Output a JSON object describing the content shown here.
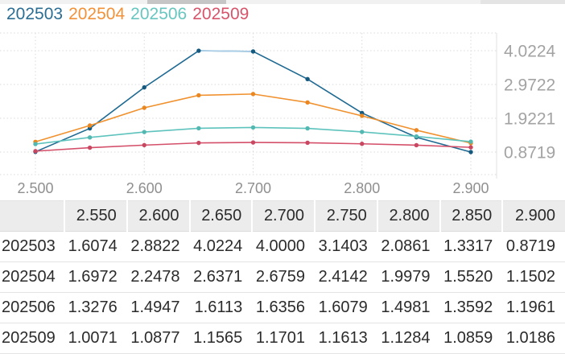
{
  "legend": {
    "items": [
      {
        "label": "202503",
        "color": "#2c6e93"
      },
      {
        "label": "202504",
        "color": "#f29138"
      },
      {
        "label": "202506",
        "color": "#68c6c0"
      },
      {
        "label": "202509",
        "color": "#d7546b"
      }
    ]
  },
  "chart_data": {
    "type": "line",
    "x": [
      2.5,
      2.55,
      2.6,
      2.65,
      2.7,
      2.75,
      2.8,
      2.85,
      2.9
    ],
    "x_tick_labels": [
      "2.500",
      "2.600",
      "2.700",
      "2.800",
      "2.900"
    ],
    "x_tick_values": [
      2.5,
      2.6,
      2.7,
      2.8,
      2.9
    ],
    "y_tick_labels": [
      "4.0224",
      "2.9722",
      "1.9221",
      "0.8719"
    ],
    "y_tick_values": [
      4.0224,
      2.9722,
      1.9221,
      0.8719
    ],
    "y_axis_side": "right",
    "grid": "dotted",
    "legend_position": "top-left",
    "ylim_approx": [
      0.17,
      4.57
    ],
    "first_value_of_each_series_estimated_from_pixels": true,
    "series": [
      {
        "name": "202503",
        "color": "#1e6992",
        "marker_color": "#15597f",
        "values": [
          0.88,
          1.6074,
          2.8822,
          4.0224,
          4.0,
          3.1403,
          2.0861,
          1.3317,
          0.8719
        ]
      },
      {
        "name": "202504",
        "color": "#f0912e",
        "marker_color": "#ea8721",
        "values": [
          1.19,
          1.6972,
          2.2478,
          2.6371,
          2.6759,
          2.4142,
          1.9979,
          1.552,
          1.1502
        ]
      },
      {
        "name": "202506",
        "color": "#5ec3bd",
        "marker_color": "#53b8b2",
        "values": [
          1.12,
          1.3276,
          1.4947,
          1.6113,
          1.6356,
          1.6079,
          1.4981,
          1.3592,
          1.1961
        ]
      },
      {
        "name": "202509",
        "color": "#d4506a",
        "marker_color": "#c94760",
        "values": [
          0.9,
          1.0071,
          1.0877,
          1.1565,
          1.1701,
          1.1613,
          1.1284,
          1.0859,
          1.0186
        ]
      }
    ],
    "highlight_segment": {
      "series": "202503",
      "from_x": 2.65,
      "to_x": 2.7,
      "color": "#a9cde6"
    }
  },
  "table": {
    "corner_label": "",
    "columns": [
      "2.550",
      "2.600",
      "2.650",
      "2.700",
      "2.750",
      "2.800",
      "2.850",
      "2.900"
    ],
    "rows": [
      {
        "label": "202503",
        "values": [
          "1.6074",
          "2.8822",
          "4.0224",
          "4.0000",
          "3.1403",
          "2.0861",
          "1.3317",
          "0.8719"
        ]
      },
      {
        "label": "202504",
        "values": [
          "1.6972",
          "2.2478",
          "2.6371",
          "2.6759",
          "2.4142",
          "1.9979",
          "1.5520",
          "1.1502"
        ]
      },
      {
        "label": "202506",
        "values": [
          "1.3276",
          "1.4947",
          "1.6113",
          "1.6356",
          "1.6079",
          "1.4981",
          "1.3592",
          "1.1961"
        ]
      },
      {
        "label": "202509",
        "values": [
          "1.0071",
          "1.0877",
          "1.1565",
          "1.1701",
          "1.1613",
          "1.1284",
          "1.0859",
          "1.0186"
        ]
      }
    ]
  }
}
